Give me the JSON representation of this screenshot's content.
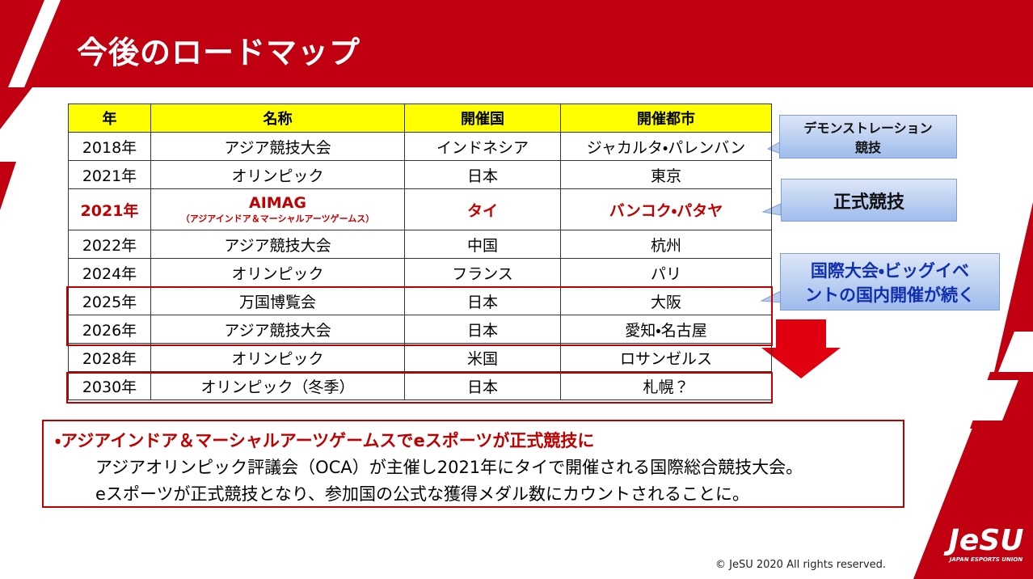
{
  "header": {
    "title": "今後のロードマップ"
  },
  "table": {
    "headers": [
      "年",
      "名称",
      "開催国",
      "開催都市"
    ],
    "rows": [
      {
        "year": "2018年",
        "name": "アジア競技大会",
        "country": "インドネシア",
        "city": "ジャカルタ・パレンバン"
      },
      {
        "year": "2021年",
        "name": "オリンピック",
        "country": "日本",
        "city": "東京"
      },
      {
        "year": "2021年",
        "name": "AIMAG",
        "name_sub": "（アジアインドア＆マーシャルアーツゲームス）",
        "country": "タイ",
        "city": "バンコク・パタヤ"
      },
      {
        "year": "2022年",
        "name": "アジア競技大会",
        "country": "中国",
        "city": "杭州"
      },
      {
        "year": "2024年",
        "name": "オリンピック",
        "country": "フランス",
        "city": "パリ"
      },
      {
        "year": "2025年",
        "name": "万国博覧会",
        "country": "日本",
        "city": "大阪"
      },
      {
        "year": "2026年",
        "name": "アジア競技大会",
        "country": "日本",
        "city": "愛知・名古屋"
      },
      {
        "year": "2028年",
        "name": "オリンピック",
        "country": "米国",
        "city": "ロサンゼルス"
      },
      {
        "year": "2030年",
        "name": "オリンピック（冬季）",
        "country": "日本",
        "city": "札幌？"
      }
    ]
  },
  "callouts": [
    {
      "lines": [
        "デモンストレーション",
        "競技"
      ]
    },
    {
      "lines": [
        "正式競技"
      ]
    },
    {
      "lines": [
        "国際大会・ビッグイベ",
        "ントの国内開催が続く"
      ]
    }
  ],
  "summary": {
    "heading": "・アジアインドア＆マーシャルアーツゲームスでeスポーツが正式競技に",
    "lines": [
      "アジアオリンピック評議会（OCA）が主催し2021年にタイで開催される国際総合競技大会。",
      "eスポーツが正式競技となり、参加国の公式な獲得メダル数にカウントされることに。"
    ]
  },
  "footer": {
    "copyright": "© JeSU 2020 All rights reserved.",
    "logo": "JeSU",
    "logo_sub": "JAPAN ESPORTS UNION"
  }
}
